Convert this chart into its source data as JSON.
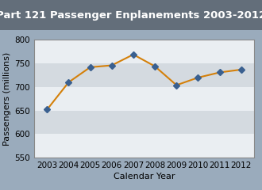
{
  "title": "Part 121 Passenger Enplanements 2003-2012",
  "xlabel": "Calendar Year",
  "ylabel": "Passengers (millions)",
  "years": [
    2003,
    2004,
    2005,
    2006,
    2007,
    2008,
    2009,
    2010,
    2011,
    2012
  ],
  "values": [
    652,
    710,
    742,
    746,
    769,
    744,
    704,
    720,
    731,
    737
  ],
  "ylim": [
    550,
    800
  ],
  "yticks": [
    550,
    600,
    650,
    700,
    750,
    800
  ],
  "line_color": "#D4800A",
  "marker_color": "#3A6090",
  "marker_style": "D",
  "marker_size": 4,
  "bg_outer": "#9AABBC",
  "bg_title": "#636E7A",
  "bg_plot": "#FFFFFF",
  "bg_stripe_light": "#EAEEF2",
  "bg_stripe_dark": "#D4DAE0",
  "title_fontsize": 9.5,
  "label_fontsize": 8,
  "tick_fontsize": 7.5,
  "title_color": "#FFFFFF"
}
